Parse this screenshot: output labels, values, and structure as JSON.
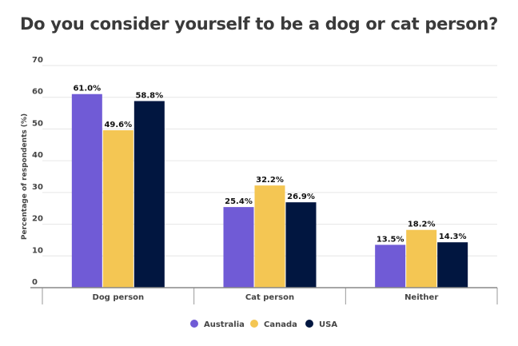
{
  "chart_data": {
    "type": "bar",
    "title": "Do you consider yourself to be a dog or cat person?",
    "xlabel": "",
    "ylabel": "Percentage of respondents (%)",
    "ylim": [
      0,
      70
    ],
    "yticks": [
      0,
      10,
      20,
      30,
      40,
      50,
      60,
      70
    ],
    "grid": true,
    "legend": "bottom",
    "categories": [
      "Dog person",
      "Cat person",
      "Neither"
    ],
    "series": [
      {
        "name": "Australia",
        "color": "#705bd6",
        "values": [
          61.0,
          25.4,
          13.5
        ],
        "labels": [
          "61.0%",
          "25.4%",
          "13.5%"
        ]
      },
      {
        "name": "Canada",
        "color": "#f4c653",
        "values": [
          49.6,
          32.2,
          18.2
        ],
        "labels": [
          "49.6%",
          "32.2%",
          "18.2%"
        ]
      },
      {
        "name": "USA",
        "color": "#011640",
        "values": [
          58.8,
          26.9,
          14.3
        ],
        "labels": [
          "58.8%",
          "26.9%",
          "14.3%"
        ]
      }
    ]
  }
}
